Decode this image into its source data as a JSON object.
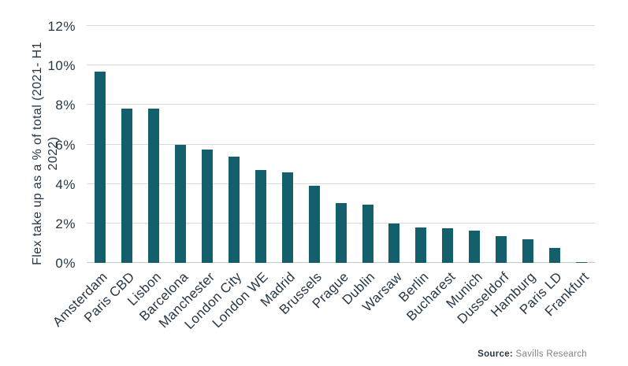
{
  "chart_data": {
    "type": "bar",
    "title": "",
    "xlabel": "",
    "ylabel": "Flex take up as a % of total (2021- H1 2022)",
    "ylabel_lines": [
      "Flex take up as a % of total (2021- H1",
      "2022)"
    ],
    "ylim": [
      0,
      12
    ],
    "grid": true,
    "legend_position": "none",
    "yticks": [
      {
        "value": 0,
        "label": "0%"
      },
      {
        "value": 2,
        "label": "2%"
      },
      {
        "value": 4,
        "label": "4%"
      },
      {
        "value": 6,
        "label": "6%"
      },
      {
        "value": 8,
        "label": "8%"
      },
      {
        "value": 10,
        "label": "10%"
      },
      {
        "value": 12,
        "label": "12%"
      }
    ],
    "categories": [
      "Amsterdam",
      "Paris CBD",
      "Lisbon",
      "Barcelona",
      "Manchester",
      "London City",
      "London WE",
      "Madrid",
      "Brussels",
      "Prague",
      "Dublin",
      "Warsaw",
      "Berlin",
      "Bucharest",
      "Munich",
      "Dusseldorf",
      "Hamburg",
      "Paris LD",
      "Frankfurt"
    ],
    "values": [
      9.7,
      7.8,
      7.8,
      6.0,
      5.75,
      5.4,
      4.7,
      4.6,
      3.9,
      3.05,
      2.95,
      2.0,
      1.8,
      1.75,
      1.65,
      1.35,
      1.2,
      0.75,
      0.05
    ],
    "colors": {
      "bar": "#135F6C",
      "grid": "#d9d9d9",
      "axis_line": "#c3c6c8",
      "text": "#253746"
    }
  },
  "source": {
    "label": "Source:",
    "text": " Savills Research"
  }
}
